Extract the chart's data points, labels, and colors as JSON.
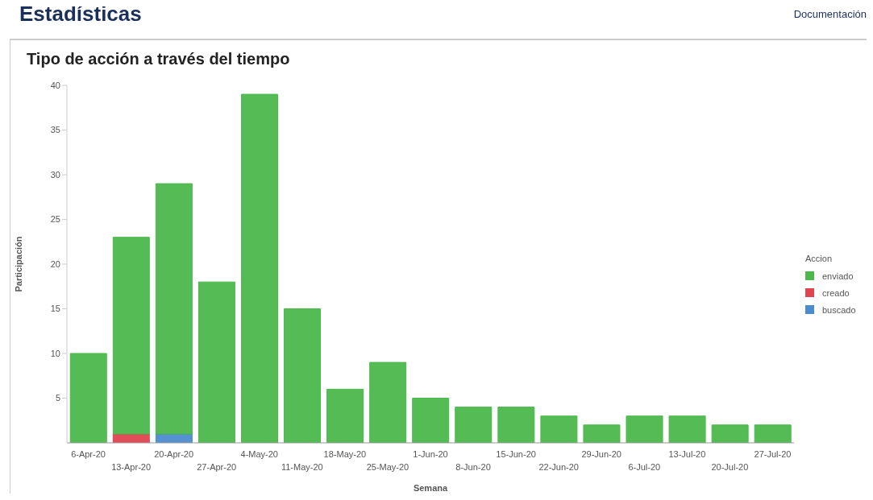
{
  "chart_data": {
    "type": "bar",
    "title": "Estadísticas",
    "subtitle": "Tipo de acción a través del tiempo",
    "annotations": [
      "Documentación"
    ],
    "xlabel": "Semana",
    "ylabel": "Participación",
    "legend_title": "Accion",
    "categories": [
      "6-Apr-20",
      "13-Apr-20",
      "20-Apr-20",
      "27-Apr-20",
      "4-May-20",
      "11-May-20",
      "18-May-20",
      "25-May-20",
      "1-Jun-20",
      "8-Jun-20",
      "15-Jun-20",
      "22-Jun-20",
      "29-Jun-20",
      "6-Jul-20",
      "13-Jul-20",
      "20-Jul-20",
      "27-Jul-20"
    ],
    "series": [
      {
        "name": "buscado",
        "color": "#4c8ccc",
        "values": [
          null,
          null,
          1,
          null,
          null,
          null,
          null,
          null,
          null,
          null,
          null,
          null,
          null,
          null,
          null,
          null,
          null
        ]
      },
      {
        "name": "creado",
        "color": "#e0454f",
        "values": [
          null,
          1,
          null,
          null,
          null,
          null,
          null,
          null,
          null,
          null,
          null,
          null,
          null,
          null,
          null,
          null,
          null
        ]
      },
      {
        "name": "enviado",
        "color": "#4cb84c",
        "values": [
          10,
          22,
          28,
          18,
          39,
          15,
          6,
          9,
          5,
          4,
          4,
          3,
          2,
          3,
          3,
          2,
          2
        ]
      }
    ],
    "stacked": true,
    "ylim": [
      0,
      40
    ],
    "yticks": [
      5,
      10,
      15,
      20,
      25,
      30,
      35,
      40
    ],
    "grid": false,
    "legend": "right"
  }
}
